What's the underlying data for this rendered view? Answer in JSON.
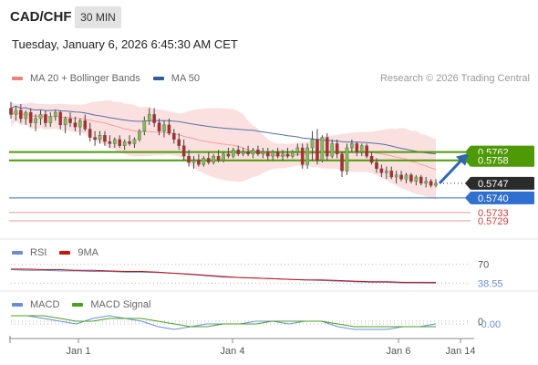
{
  "header": {
    "pair": "CAD/CHF",
    "timeframe": "30 MIN",
    "datetime": "Tuesday, January 6, 2026 6:45:30 AM CET",
    "credit": "Research © 2026 Trading Central"
  },
  "legend_main": [
    {
      "label": "MA 20 + Bollinger Bands",
      "color": "#f08080"
    },
    {
      "label": "MA 50",
      "color": "#335c9e"
    }
  ],
  "legend_rsi": [
    {
      "label": "RSI",
      "color": "#6a8fd8"
    },
    {
      "label": "9MA",
      "color": "#cc1111"
    }
  ],
  "legend_macd": [
    {
      "label": "MACD",
      "color": "#6a8fd8"
    },
    {
      "label": "MACD Signal",
      "color": "#4aa020"
    }
  ],
  "colors": {
    "bull": "#7fbf50",
    "bear": "#b52a2a",
    "resistance": "#4e9a06",
    "support": "#2f6fd0",
    "pivot_red": "#e89a9a",
    "bb_fill": "#fbe0e0",
    "arrow": "#2f67b0"
  },
  "chart_data": [
    {
      "type": "candlestick",
      "name": "price",
      "x_ticks": [
        "Jan 1",
        "Jan 4",
        "Jan 6",
        "Jan 14"
      ],
      "ylim": [
        0.5722,
        0.5792
      ],
      "levels": [
        {
          "value": 0.5762,
          "label": "0.5762",
          "kind": "resistance",
          "style": "box"
        },
        {
          "value": 0.5758,
          "label": "0.5758",
          "kind": "resistance",
          "style": "box"
        },
        {
          "value": 0.5747,
          "label": "0.5747",
          "kind": "current",
          "style": "box-dark"
        },
        {
          "value": 0.574,
          "label": "0.5740",
          "kind": "support",
          "style": "box"
        },
        {
          "value": 0.5733,
          "label": "0.5733",
          "kind": "pivot",
          "style": "text"
        },
        {
          "value": 0.5729,
          "label": "0.5729",
          "kind": "pivot",
          "style": "text"
        }
      ],
      "candles": [
        [
          0.5783,
          0.5786,
          0.5778,
          0.578
        ],
        [
          0.578,
          0.5784,
          0.5777,
          0.5782
        ],
        [
          0.5782,
          0.5785,
          0.5776,
          0.5778
        ],
        [
          0.5778,
          0.5782,
          0.5775,
          0.5781
        ],
        [
          0.5781,
          0.5783,
          0.5774,
          0.5776
        ],
        [
          0.5776,
          0.578,
          0.5772,
          0.5778
        ],
        [
          0.5778,
          0.5782,
          0.5775,
          0.578
        ],
        [
          0.578,
          0.5782,
          0.5774,
          0.5776
        ],
        [
          0.5776,
          0.5781,
          0.5774,
          0.5779
        ],
        [
          0.5779,
          0.5782,
          0.5777,
          0.5781
        ],
        [
          0.5781,
          0.5782,
          0.5773,
          0.5775
        ],
        [
          0.5775,
          0.5779,
          0.5771,
          0.5778
        ],
        [
          0.5778,
          0.5781,
          0.5774,
          0.5776
        ],
        [
          0.5776,
          0.5779,
          0.5772,
          0.5774
        ],
        [
          0.5774,
          0.5778,
          0.577,
          0.5777
        ],
        [
          0.5777,
          0.578,
          0.5772,
          0.5773
        ],
        [
          0.5773,
          0.5776,
          0.5767,
          0.5769
        ],
        [
          0.5769,
          0.5772,
          0.5765,
          0.5768
        ],
        [
          0.5768,
          0.5772,
          0.5766,
          0.577
        ],
        [
          0.577,
          0.5772,
          0.5765,
          0.5767
        ],
        [
          0.5767,
          0.577,
          0.5764,
          0.5766
        ],
        [
          0.5766,
          0.5769,
          0.5764,
          0.5768
        ],
        [
          0.5768,
          0.577,
          0.5764,
          0.5765
        ],
        [
          0.5765,
          0.5768,
          0.5763,
          0.5767
        ],
        [
          0.5767,
          0.577,
          0.5765,
          0.5766
        ],
        [
          0.5766,
          0.5769,
          0.5764,
          0.5768
        ],
        [
          0.5768,
          0.5773,
          0.5767,
          0.5772
        ],
        [
          0.5772,
          0.5779,
          0.577,
          0.5777
        ],
        [
          0.5777,
          0.5783,
          0.5775,
          0.578
        ],
        [
          0.578,
          0.5783,
          0.5774,
          0.5776
        ],
        [
          0.5776,
          0.5778,
          0.577,
          0.5772
        ],
        [
          0.5772,
          0.5777,
          0.5769,
          0.5775
        ],
        [
          0.5775,
          0.5778,
          0.577,
          0.5771
        ],
        [
          0.5771,
          0.5773,
          0.5766,
          0.5768
        ],
        [
          0.5768,
          0.5771,
          0.5763,
          0.5765
        ],
        [
          0.5765,
          0.5768,
          0.5758,
          0.576
        ],
        [
          0.576,
          0.5763,
          0.5755,
          0.5757
        ],
        [
          0.5757,
          0.576,
          0.5754,
          0.5758
        ],
        [
          0.5758,
          0.5761,
          0.5755,
          0.5756
        ],
        [
          0.5756,
          0.576,
          0.5755,
          0.5759
        ],
        [
          0.5759,
          0.5762,
          0.5756,
          0.5757
        ],
        [
          0.5757,
          0.5761,
          0.5756,
          0.576
        ],
        [
          0.576,
          0.5763,
          0.5757,
          0.5758
        ],
        [
          0.5758,
          0.5762,
          0.5757,
          0.5761
        ],
        [
          0.5761,
          0.5764,
          0.5759,
          0.576
        ],
        [
          0.576,
          0.5764,
          0.5759,
          0.5763
        ],
        [
          0.5763,
          0.5765,
          0.576,
          0.5761
        ],
        [
          0.5761,
          0.5764,
          0.576,
          0.5762
        ],
        [
          0.5762,
          0.5765,
          0.576,
          0.5761
        ],
        [
          0.5761,
          0.5764,
          0.5759,
          0.5763
        ],
        [
          0.5763,
          0.5765,
          0.576,
          0.5761
        ],
        [
          0.5761,
          0.5764,
          0.5759,
          0.5762
        ],
        [
          0.5762,
          0.5764,
          0.5758,
          0.576
        ],
        [
          0.576,
          0.5763,
          0.5758,
          0.5762
        ],
        [
          0.5762,
          0.5764,
          0.5759,
          0.576
        ],
        [
          0.576,
          0.5763,
          0.5758,
          0.5761
        ],
        [
          0.5761,
          0.5764,
          0.5759,
          0.576
        ],
        [
          0.576,
          0.5763,
          0.5759,
          0.5762
        ],
        [
          0.5762,
          0.5766,
          0.576,
          0.5764
        ],
        [
          0.5764,
          0.5766,
          0.5754,
          0.5756
        ],
        [
          0.5756,
          0.5766,
          0.5754,
          0.5764
        ],
        [
          0.5764,
          0.5772,
          0.5758,
          0.5768
        ],
        [
          0.5768,
          0.5773,
          0.5756,
          0.5758
        ],
        [
          0.5758,
          0.577,
          0.5757,
          0.5769
        ],
        [
          0.5769,
          0.5771,
          0.5758,
          0.576
        ],
        [
          0.576,
          0.5768,
          0.5759,
          0.5766
        ],
        [
          0.5766,
          0.5768,
          0.5759,
          0.5761
        ],
        [
          0.5761,
          0.5762,
          0.575,
          0.5753
        ],
        [
          0.5753,
          0.5766,
          0.5751,
          0.5764
        ],
        [
          0.5764,
          0.5768,
          0.5762,
          0.5766
        ],
        [
          0.5766,
          0.5767,
          0.576,
          0.5762
        ],
        [
          0.5762,
          0.5766,
          0.576,
          0.5765
        ],
        [
          0.5765,
          0.5766,
          0.5759,
          0.576
        ],
        [
          0.576,
          0.5762,
          0.5756,
          0.5757
        ],
        [
          0.5757,
          0.5759,
          0.5752,
          0.5754
        ],
        [
          0.5754,
          0.5756,
          0.575,
          0.5752
        ],
        [
          0.5752,
          0.5755,
          0.5749,
          0.5753
        ],
        [
          0.5753,
          0.5755,
          0.5749,
          0.575
        ],
        [
          0.575,
          0.5753,
          0.5747,
          0.5751
        ],
        [
          0.5751,
          0.5753,
          0.5748,
          0.5749
        ],
        [
          0.5749,
          0.5752,
          0.5747,
          0.5751
        ],
        [
          0.5751,
          0.5752,
          0.5747,
          0.5748
        ],
        [
          0.5748,
          0.5751,
          0.5746,
          0.575
        ],
        [
          0.575,
          0.5751,
          0.5746,
          0.5747
        ],
        [
          0.5747,
          0.575,
          0.5745,
          0.5748
        ],
        [
          0.5748,
          0.5749,
          0.5745,
          0.5746
        ],
        [
          0.5746,
          0.5749,
          0.5745,
          0.5747
        ]
      ]
    },
    {
      "type": "line",
      "name": "RSI",
      "right_labels": [
        {
          "value": 70,
          "label": "70"
        },
        {
          "value": 38.55,
          "label": "38.55"
        }
      ],
      "ylim": [
        30,
        80
      ],
      "series": [
        {
          "name": "RSI",
          "values": [
            61,
            60,
            60,
            59,
            59,
            58,
            58,
            57,
            57,
            56,
            55,
            54,
            52,
            50,
            48,
            47,
            46,
            45,
            44,
            43,
            42,
            41,
            40,
            40,
            39,
            39,
            38.55
          ]
        },
        {
          "name": "9MA",
          "values": [
            62,
            62,
            61,
            61,
            60,
            60,
            59,
            58,
            58,
            57,
            55,
            53,
            51,
            49,
            48,
            47,
            46,
            45,
            44,
            44,
            43,
            42,
            41,
            41,
            40,
            40,
            40
          ]
        }
      ]
    },
    {
      "type": "line",
      "name": "MACD",
      "right_labels": [
        {
          "value": 0,
          "label": "0"
        },
        {
          "value": -0.0001,
          "label": "-0.00"
        }
      ],
      "ylim": [
        -0.0006,
        0.0004
      ],
      "series": [
        {
          "name": "MACD",
          "values": [
            0.0002,
            0.0002,
            0.0001,
            0,
            -0.0001,
            0.0001,
            0.0002,
            0.0001,
            0,
            -0.0002,
            -0.0003,
            -0.0002,
            -0.0001,
            -0.0001,
            -0.0001,
            0,
            0,
            -0.0001,
            0,
            0,
            -0.0002,
            -0.0003,
            -0.0003,
            -0.0003,
            -0.0002,
            -0.0002,
            -0.0001
          ]
        },
        {
          "name": "MACD Signal",
          "values": [
            0.0002,
            0.0002,
            0.0002,
            0.0001,
            0,
            0,
            0.0001,
            0.0001,
            0.0001,
            0,
            -0.0001,
            -0.0002,
            -0.0002,
            -0.0001,
            -0.0001,
            -0.0001,
            0,
            0,
            0,
            0,
            -0.0001,
            -0.0002,
            -0.0002,
            -0.0002,
            -0.0002,
            -0.0002,
            -0.0002
          ]
        }
      ]
    }
  ]
}
